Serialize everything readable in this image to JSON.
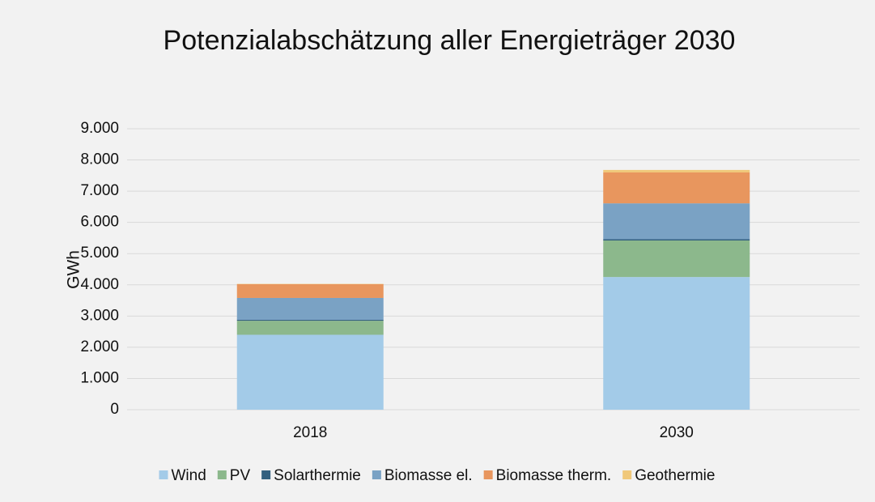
{
  "chart_data": {
    "type": "stacked_bar",
    "title": "Potenzialabschätzung aller Energieträger 2030",
    "y_label": "GWh",
    "categories": [
      "2018",
      "2030"
    ],
    "series": [
      {
        "name": "Wind",
        "color": "#a3cbe8",
        "values": [
          2400,
          4250
        ]
      },
      {
        "name": "PV",
        "color": "#8cb88c",
        "values": [
          450,
          1170
        ]
      },
      {
        "name": "Solarthermie",
        "color": "#33607f",
        "values": [
          30,
          40
        ]
      },
      {
        "name": "Biomasse el.",
        "color": "#7aa2c4",
        "values": [
          700,
          1150
        ]
      },
      {
        "name": "Biomasse therm.",
        "color": "#e8965e",
        "values": [
          440,
          990
        ]
      },
      {
        "name": "Geothermie",
        "color": "#f0c87a",
        "values": [
          10,
          80
        ]
      }
    ],
    "ylim": [
      0,
      9000
    ],
    "yticks": [
      0,
      {
        "value": 1000,
        "label": "1.000"
      },
      {
        "value": 2000,
        "label": "2.000"
      },
      {
        "value": 3000,
        "label": "3.000"
      },
      {
        "value": 4000,
        "label": "4.000"
      },
      {
        "value": 5000,
        "label": "5.000"
      },
      {
        "value": 6000,
        "label": "6.000"
      },
      {
        "value": 7000,
        "label": "7.000"
      },
      {
        "value": 8000,
        "label": "8.000"
      },
      {
        "value": 9000,
        "label": "9.000"
      }
    ],
    "grid": true,
    "legend": "bottom"
  }
}
